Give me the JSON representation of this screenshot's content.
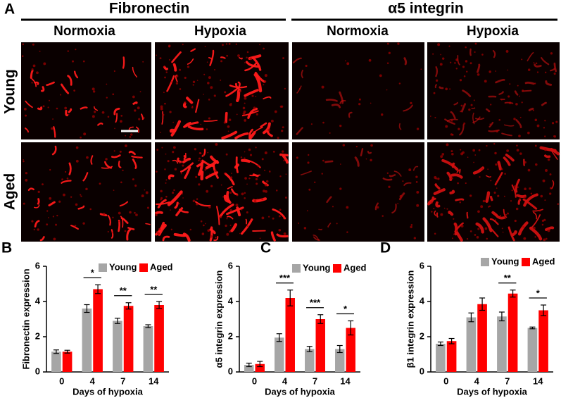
{
  "panel_a": {
    "letter": "A",
    "groups": [
      {
        "title": "Fibronectin",
        "columns": [
          "Normoxia",
          "Hypoxia"
        ]
      },
      {
        "title": "α5 integrin",
        "columns": [
          "Normoxia",
          "Hypoxia"
        ]
      }
    ],
    "rows": [
      "Young",
      "Aged"
    ]
  },
  "chart_data": [
    {
      "type": "bar",
      "panel": "B",
      "ylabel": "Fibronectin expression",
      "xlabel": "Days of hypoxia",
      "categories": [
        "0",
        "4",
        "7",
        "14"
      ],
      "ylim": [
        0,
        6
      ],
      "yticks": [
        0,
        2,
        4,
        6
      ],
      "legend": "top-right",
      "series": [
        {
          "name": "Young",
          "color": "#a6a6a6",
          "values": [
            1.15,
            3.6,
            2.9,
            2.6
          ],
          "errors": [
            0.1,
            0.22,
            0.15,
            0.08
          ]
        },
        {
          "name": "Aged",
          "color": "#ff0000",
          "values": [
            1.15,
            4.7,
            3.75,
            3.8
          ],
          "errors": [
            0.08,
            0.25,
            0.18,
            0.2
          ]
        }
      ],
      "significance": [
        null,
        "*",
        "**",
        "**"
      ]
    },
    {
      "type": "bar",
      "panel": "C",
      "ylabel": "α5 integrin expression",
      "xlabel": "Days of hypoxia",
      "categories": [
        "0",
        "4",
        "7",
        "14"
      ],
      "ylim": [
        0,
        6
      ],
      "yticks": [
        0,
        2,
        4,
        6
      ],
      "legend": "top-right",
      "series": [
        {
          "name": "Young",
          "color": "#a6a6a6",
          "values": [
            0.4,
            1.95,
            1.3,
            1.3
          ],
          "errors": [
            0.1,
            0.22,
            0.15,
            0.2
          ]
        },
        {
          "name": "Aged",
          "color": "#ff0000",
          "values": [
            0.45,
            4.2,
            3.0,
            2.5
          ],
          "errors": [
            0.15,
            0.45,
            0.25,
            0.4
          ]
        }
      ],
      "significance": [
        null,
        "***",
        "***",
        "*"
      ]
    },
    {
      "type": "bar",
      "panel": "D",
      "ylabel": "β1 integrin expression",
      "xlabel": "Days of hypoxia",
      "categories": [
        "0",
        "4",
        "7",
        "14"
      ],
      "ylim": [
        0,
        6
      ],
      "yticks": [
        0,
        2,
        4,
        6
      ],
      "legend": "top-right",
      "series": [
        {
          "name": "Young",
          "color": "#a6a6a6",
          "values": [
            1.6,
            3.1,
            3.15,
            2.5
          ],
          "errors": [
            0.1,
            0.25,
            0.25,
            0.05
          ]
        },
        {
          "name": "Aged",
          "color": "#ff0000",
          "values": [
            1.75,
            3.85,
            4.45,
            3.5
          ],
          "errors": [
            0.15,
            0.35,
            0.2,
            0.3
          ]
        }
      ],
      "significance": [
        null,
        null,
        "**",
        "*"
      ]
    }
  ]
}
